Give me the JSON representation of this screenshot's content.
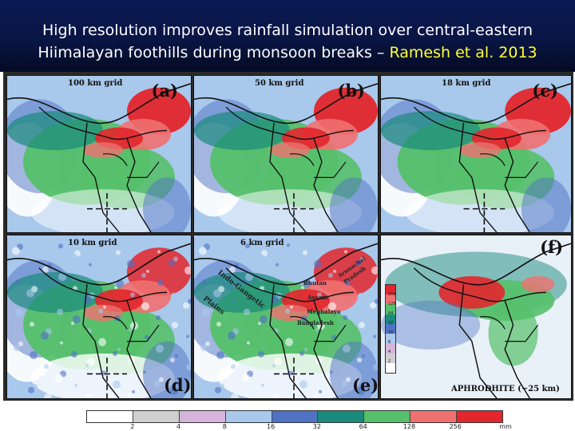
{
  "slide": {
    "title_main": "High resolution improves rainfall simulation over central-eastern Hiimalayan foothills during monsoon breaks –",
    "title_citation": "Ramesh et al. 2013"
  },
  "panels": [
    {
      "grid_label": "100 km grid",
      "letter": "(a)"
    },
    {
      "grid_label": "50 km grid",
      "letter": "(b)"
    },
    {
      "grid_label": "18 km grid",
      "letter": "(c)"
    },
    {
      "grid_label": "10 km grid",
      "letter": "(d)"
    },
    {
      "grid_label": "6 km grid",
      "letter": "(e)"
    },
    {
      "grid_label": "APHRODHITE (~25 km)",
      "letter": "(f)"
    }
  ],
  "regions": {
    "indo_gangetic": "Indo-Gangetic",
    "plains": "Plains",
    "bhutan": "Bhutan",
    "arunachal": "Arunachal",
    "pradesh": "Pradesh",
    "assam": "Assam",
    "meghalaya": "Meghalaya",
    "bangladesh": "Bangladesh"
  },
  "colorbar": {
    "ticks": [
      "2",
      "4",
      "8",
      "16",
      "32",
      "64",
      "128",
      "256"
    ],
    "unit": "mm",
    "colors": [
      "#ffffff",
      "#cfcfcf",
      "#d6b4dc",
      "#a8c8ec",
      "#4f72c4",
      "#1a8a7c",
      "#55c06a",
      "#f07070",
      "#e3262d"
    ]
  },
  "inset_colorbar": {
    "ticks": [
      "256",
      "128",
      "64",
      "32",
      "16",
      "8",
      "4",
      "2"
    ]
  }
}
